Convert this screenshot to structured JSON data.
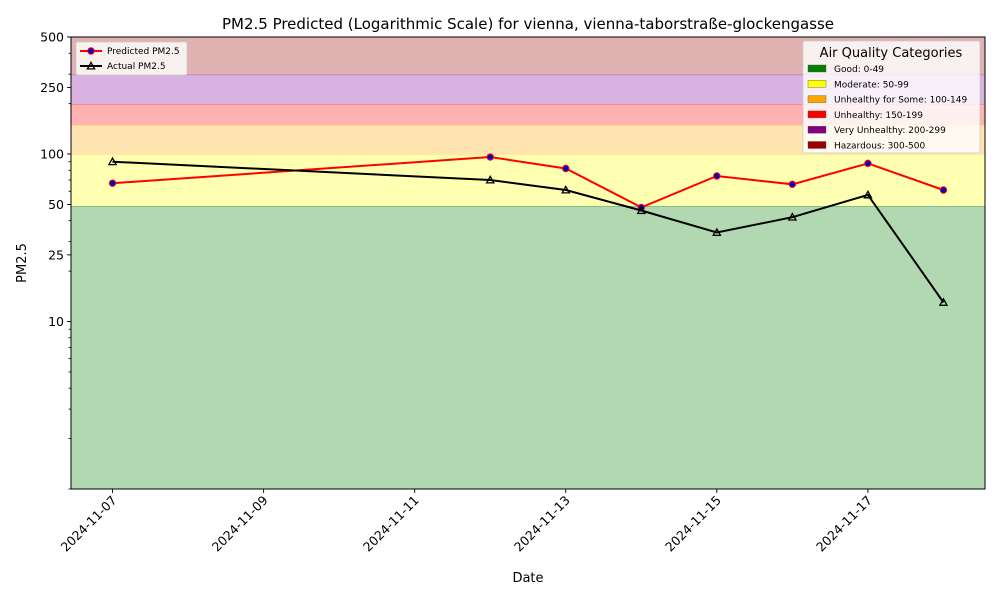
{
  "chart_data": {
    "type": "line",
    "title": "PM2.5 Predicted (Logarithmic Scale) for vienna, vienna-taborstraße-glockengasse",
    "xlabel": "Date",
    "ylabel": "PM2.5",
    "yscale": "log",
    "ylim": [
      1,
      500
    ],
    "xlim": [
      "2024-11-06.45",
      "2024-11-18.55"
    ],
    "grid": false,
    "x_ticks": [
      "2024-11-07",
      "2024-11-09",
      "2024-11-11",
      "2024-11-13",
      "2024-11-15",
      "2024-11-17"
    ],
    "y_ticks": [
      {
        "value": 10,
        "label": "10"
      },
      {
        "value": 25,
        "label": "25"
      },
      {
        "value": 50,
        "label": "50"
      },
      {
        "value": 100,
        "label": "100"
      },
      {
        "value": 250,
        "label": "250"
      },
      {
        "value": 500,
        "label": "500"
      }
    ],
    "series": [
      {
        "name": "Predicted PM2.5",
        "color": "#ff0000",
        "marker_color": "#0000cc",
        "marker": "circle",
        "points": [
          {
            "x": "2024-11-07",
            "y": 67
          },
          {
            "x": "2024-11-12",
            "y": 96
          },
          {
            "x": "2024-11-13",
            "y": 82
          },
          {
            "x": "2024-11-14",
            "y": 48
          },
          {
            "x": "2024-11-15",
            "y": 74
          },
          {
            "x": "2024-11-16",
            "y": 66
          },
          {
            "x": "2024-11-17",
            "y": 88
          },
          {
            "x": "2024-11-18",
            "y": 61
          }
        ]
      },
      {
        "name": "Actual PM2.5",
        "color": "#000000",
        "marker_color": "#000000",
        "marker": "triangle",
        "points": [
          {
            "x": "2024-11-07",
            "y": 90
          },
          {
            "x": "2024-11-12",
            "y": 70
          },
          {
            "x": "2024-11-13",
            "y": 61
          },
          {
            "x": "2024-11-14",
            "y": 46
          },
          {
            "x": "2024-11-15",
            "y": 34
          },
          {
            "x": "2024-11-16",
            "y": 42
          },
          {
            "x": "2024-11-17",
            "y": 57
          },
          {
            "x": "2024-11-18",
            "y": 13
          }
        ]
      }
    ],
    "bands": [
      {
        "label": "Good: 0-49",
        "min": 1,
        "max": 49,
        "color": "#008000",
        "fill": "#b2d8b2"
      },
      {
        "label": "Moderate: 50-99",
        "min": 49,
        "max": 99,
        "color": "#ffff00",
        "fill": "#ffffb2"
      },
      {
        "label": "Unhealthy for Some: 100-149",
        "min": 99,
        "max": 149,
        "color": "#ffa500",
        "fill": "#ffe4b2"
      },
      {
        "label": "Unhealthy: 150-199",
        "min": 149,
        "max": 199,
        "color": "#ff0000",
        "fill": "#ffb2b2"
      },
      {
        "label": "Very Unhealthy: 200-299",
        "min": 199,
        "max": 299,
        "color": "#800080",
        "fill": "#d8b2e0"
      },
      {
        "label": "Hazardous: 300-500",
        "min": 299,
        "max": 500,
        "color": "#990000",
        "fill": "#e0b2b2"
      }
    ],
    "legend_title": "Air Quality Categories",
    "legend_placement": "top-right",
    "series_legend_placement": "top-left"
  }
}
